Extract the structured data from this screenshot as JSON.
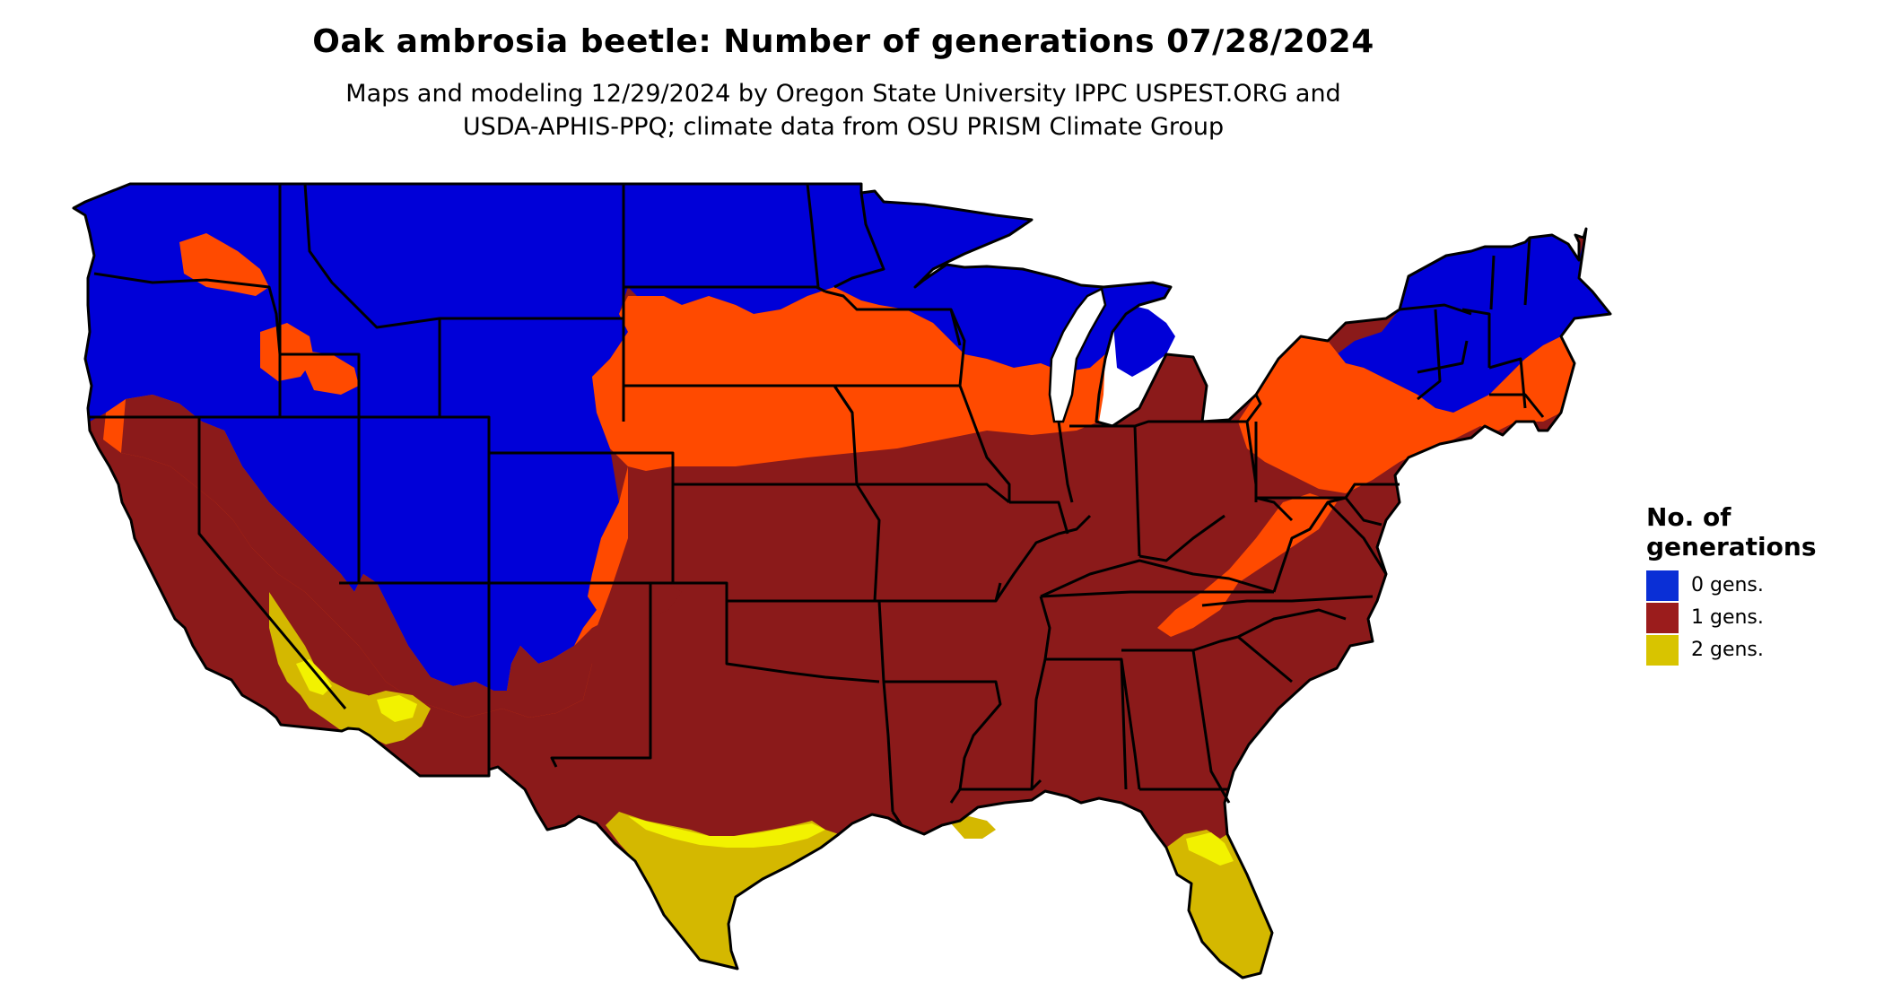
{
  "title": "Oak ambrosia beetle: Number of generations 07/28/2024",
  "subtitle_line1": "Maps and modeling 12/29/2024 by Oregon State University IPPC USPEST.ORG and",
  "subtitle_line2": "USDA-APHIS-PPQ; climate data from OSU PRISM Climate Group",
  "legend": {
    "title_line1": "No. of",
    "title_line2": "generations",
    "items": [
      {
        "label": "0 gens.",
        "color": "#0a2fd6"
      },
      {
        "label": "1 gens.",
        "color": "#9b1c1c"
      },
      {
        "label": "2 gens.",
        "color": "#d8c400"
      }
    ]
  },
  "colors": {
    "zero_gens": "#0000d8",
    "transition": "#ff4a00",
    "one_gen": "#8b1a1a",
    "two_gens": "#d4b800",
    "two_gens_bright": "#f2f200",
    "state_border": "#000000"
  }
}
